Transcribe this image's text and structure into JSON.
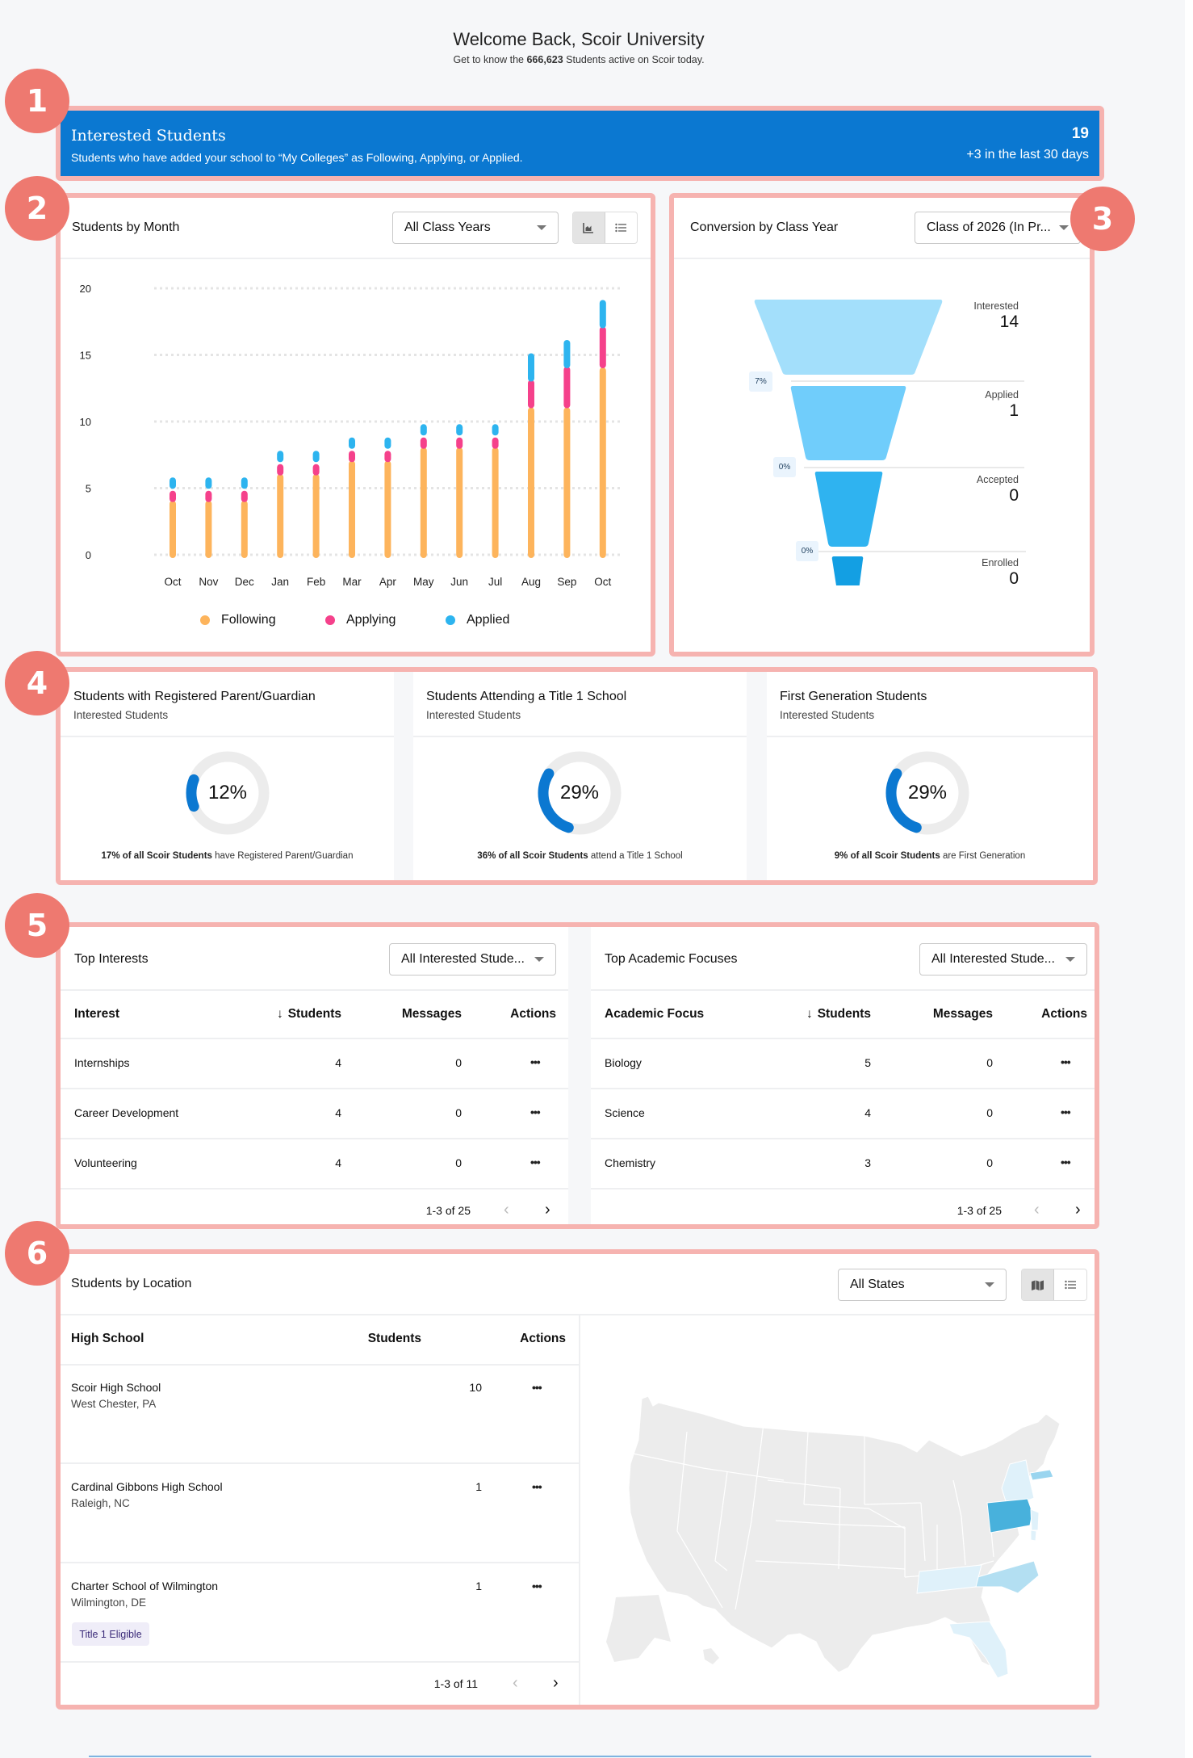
{
  "header": {
    "title": "Welcome Back, Scoir University",
    "subtitle_prefix": "Get to know the ",
    "subtitle_count": "666,623",
    "subtitle_suffix": " Students active on Scoir today."
  },
  "badges": [
    "1",
    "2",
    "3",
    "4",
    "5",
    "6"
  ],
  "colors": {
    "accent_blue": "#0b78d1",
    "highlight_border": "#f6b3b0",
    "badge": "#ee7970",
    "following": "#fdb45c",
    "applying": "#f5418b",
    "applied": "#2db4ef"
  },
  "interested": {
    "title": "Interested Students",
    "description": "Students who have added your school to “My Colleges” as Following, Applying, or Applied.",
    "count": "19",
    "delta": "+3 in the last 30 days"
  },
  "students_by_month": {
    "title": "Students by Month",
    "filter_value": "All Class Years",
    "view_toggle": [
      "chart-view-icon",
      "list-view-icon"
    ],
    "active_view": "chart"
  },
  "chart_data": {
    "type": "bar",
    "stacked": true,
    "title": "Students by Month",
    "categories": [
      "Oct",
      "Nov",
      "Dec",
      "Jan",
      "Feb",
      "Mar",
      "Apr",
      "May",
      "Jun",
      "Jul",
      "Aug",
      "Sep",
      "Oct"
    ],
    "series": [
      {
        "name": "Following",
        "color": "#fdb45c",
        "values": [
          4,
          4,
          4,
          6,
          6,
          7,
          7,
          8,
          8,
          8,
          11,
          11,
          14
        ]
      },
      {
        "name": "Applying",
        "color": "#f5418b",
        "values": [
          1,
          1,
          1,
          1,
          1,
          1,
          1,
          1,
          1,
          1,
          2,
          3,
          3
        ]
      },
      {
        "name": "Applied",
        "color": "#2db4ef",
        "values": [
          1,
          1,
          1,
          1,
          1,
          1,
          1,
          1,
          1,
          1,
          2,
          2,
          2
        ]
      }
    ],
    "yticks": [
      "20",
      "15",
      "10",
      "5",
      "0"
    ],
    "ylim": [
      0,
      20
    ],
    "grid": true,
    "legend_position": "bottom",
    "xlabel": "",
    "ylabel": ""
  },
  "conversion": {
    "title": "Conversion by Class Year",
    "filter_value": "Class of 2026 (In Pr...",
    "stages": [
      {
        "label": "Interested",
        "value": "14",
        "color": "#a3dffb"
      },
      {
        "label": "Applied",
        "value": "1",
        "color": "#70cdfb"
      },
      {
        "label": "Accepted",
        "value": "0",
        "color": "#2fb3f0"
      },
      {
        "label": "Enrolled",
        "value": "0",
        "color": "#139fe3"
      }
    ],
    "rates": [
      "7%",
      "0%",
      "0%"
    ]
  },
  "stats": [
    {
      "title": "Students with Registered Parent/Guardian",
      "subtitle": "Interested Students",
      "percent_label": "12%",
      "percent": 12,
      "foot_bold": "17% of all Scoir Students",
      "foot_rest": " have Registered Parent/Guardian"
    },
    {
      "title": "Students Attending a Title 1 School",
      "subtitle": "Interested Students",
      "percent_label": "29%",
      "percent": 29,
      "foot_bold": "36% of all Scoir Students",
      "foot_rest": " attend a Title 1 School"
    },
    {
      "title": "First Generation Students",
      "subtitle": "Interested Students",
      "percent_label": "29%",
      "percent": 29,
      "foot_bold": "9% of all Scoir Students",
      "foot_rest": " are First Generation"
    }
  ],
  "top_interests": {
    "title": "Top Interests",
    "filter_value": "All Interested Stude...",
    "columns": [
      "Interest",
      "Students",
      "Messages",
      "Actions"
    ],
    "sort_icon": "arrow-down-icon",
    "rows": [
      {
        "name": "Internships",
        "students": "4",
        "messages": "0"
      },
      {
        "name": "Career Development",
        "students": "4",
        "messages": "0"
      },
      {
        "name": "Volunteering",
        "students": "4",
        "messages": "0"
      }
    ],
    "actions_glyph": "•••",
    "pagination": "1-3 of 25"
  },
  "top_focuses": {
    "title": "Top Academic Focuses",
    "filter_value": "All Interested Stude...",
    "columns": [
      "Academic Focus",
      "Students",
      "Messages",
      "Actions"
    ],
    "sort_icon": "arrow-down-icon",
    "rows": [
      {
        "name": "Biology",
        "students": "5",
        "messages": "0"
      },
      {
        "name": "Science",
        "students": "4",
        "messages": "0"
      },
      {
        "name": "Chemistry",
        "students": "3",
        "messages": "0"
      }
    ],
    "actions_glyph": "•••",
    "pagination": "1-3 of 25"
  },
  "location": {
    "title": "Students by Location",
    "filter_value": "All States",
    "view_toggle": [
      "map-view-icon",
      "list-view-icon"
    ],
    "active_view": "map",
    "columns": [
      "High School",
      "Students",
      "Actions"
    ],
    "rows": [
      {
        "name": "Scoir High School",
        "city": "West Chester, PA",
        "students": "10",
        "tag": ""
      },
      {
        "name": "Cardinal Gibbons High School",
        "city": "Raleigh, NC",
        "students": "1",
        "tag": ""
      },
      {
        "name": "Charter School of Wilmington",
        "city": "Wilmington, DE",
        "students": "1",
        "tag": "Title 1 Eligible"
      }
    ],
    "actions_glyph": "•••",
    "pagination": "1-3 of 11",
    "map_highlights": {
      "PA": "#48b1dc",
      "MA": "#9ad5ef",
      "NC": "#b3dff2",
      "NY": "#dff1fa",
      "NJ": "#dff1fa",
      "DE": "#dff1fa",
      "TN": "#dff1fa",
      "FL": "#dff1fa"
    }
  },
  "icons": {
    "prev": "‹",
    "next": "›",
    "sort_down": "↓"
  }
}
